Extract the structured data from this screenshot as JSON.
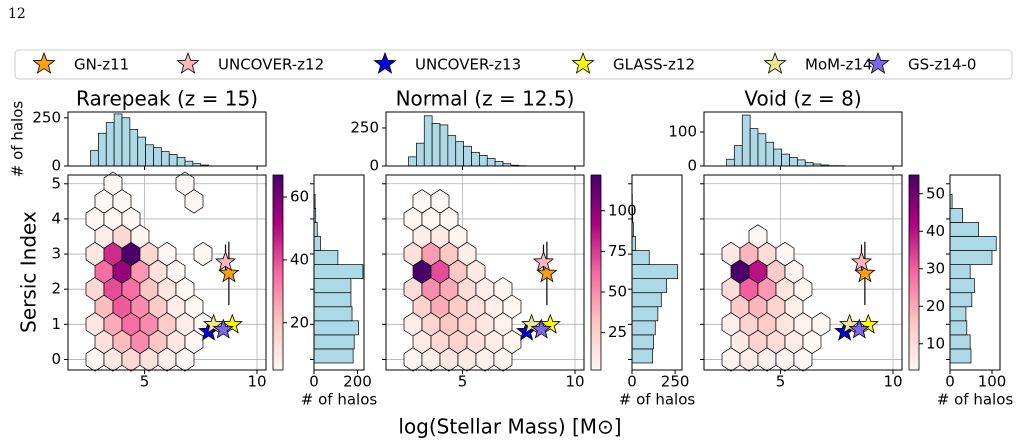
{
  "page_number": "12",
  "legend": {
    "series": [
      {
        "name": "GN-z11",
        "color": "#ff9f0f",
        "x": 8.75,
        "y": 2.45,
        "yerr": 0.9
      },
      {
        "name": "UNCOVER-z12",
        "color": "#ffb6c1",
        "x": 8.6,
        "y": 2.77,
        "yerr": 0.5
      },
      {
        "name": "UNCOVER-z13",
        "color": "#0000e0",
        "x": 7.85,
        "y": 0.79
      },
      {
        "name": "GLASS-z12",
        "color": "#ffff00",
        "x": 8.9,
        "y": 0.99
      },
      {
        "name": "MoM-z14",
        "color": "#f0e68c",
        "x": 8.07,
        "y": 0.99
      },
      {
        "name": "GS-z14-0",
        "color": "#7b68ee",
        "x": 8.5,
        "y": 0.85
      }
    ]
  },
  "ylabel": "Sersic Index",
  "xlabel": "log(Stellar Mass) [M⊙]",
  "hist_label": "# of halos",
  "cmap": [
    "#fff7f3",
    "#fcc5c0",
    "#f768a1",
    "#ae017e",
    "#49006a"
  ],
  "hist_color": "#add8e6",
  "chart_data": [
    {
      "type": "hexbin",
      "title": "Rarepeak (z = 15)",
      "xlim": [
        1.6,
        10.4
      ],
      "xticks": [
        5,
        10
      ],
      "ylim": [
        -0.3,
        5.25
      ],
      "yticks": [
        0,
        1,
        2,
        3,
        4,
        5
      ],
      "grid": true,
      "show_ytick_labels": true,
      "hexes": [
        [
          2.8,
          0,
          5
        ],
        [
          3.6,
          0,
          10
        ],
        [
          4.4,
          0,
          15
        ],
        [
          5.2,
          0,
          12
        ],
        [
          6.0,
          0,
          8
        ],
        [
          6.8,
          0,
          4
        ],
        [
          3.2,
          0.5,
          12
        ],
        [
          4.0,
          0.5,
          22
        ],
        [
          4.8,
          0.5,
          30
        ],
        [
          5.6,
          0.5,
          20
        ],
        [
          6.4,
          0.5,
          10
        ],
        [
          7.2,
          0.5,
          4
        ],
        [
          2.8,
          1,
          10
        ],
        [
          3.6,
          1,
          25
        ],
        [
          4.4,
          1,
          35
        ],
        [
          5.2,
          1,
          30
        ],
        [
          6.0,
          1,
          18
        ],
        [
          6.8,
          1,
          8
        ],
        [
          7.6,
          1,
          3
        ],
        [
          3.2,
          1.5,
          22
        ],
        [
          4.0,
          1.5,
          38
        ],
        [
          4.8,
          1.5,
          30
        ],
        [
          5.6,
          1.5,
          18
        ],
        [
          6.4,
          1.5,
          8
        ],
        [
          7.2,
          1.5,
          3
        ],
        [
          2.8,
          2,
          15
        ],
        [
          3.6,
          2,
          40
        ],
        [
          4.4,
          2,
          35
        ],
        [
          5.2,
          2,
          20
        ],
        [
          6.0,
          2,
          10
        ],
        [
          6.8,
          2,
          4
        ],
        [
          3.2,
          2.5,
          35
        ],
        [
          4.0,
          2.5,
          55
        ],
        [
          4.8,
          2.5,
          28
        ],
        [
          5.6,
          2.5,
          12
        ],
        [
          6.4,
          2.5,
          5
        ],
        [
          2.8,
          3,
          10
        ],
        [
          3.6,
          3,
          45
        ],
        [
          4.4,
          3,
          67
        ],
        [
          5.2,
          3,
          15
        ],
        [
          6.0,
          3,
          4
        ],
        [
          3.2,
          3.5,
          8
        ],
        [
          4.0,
          3.5,
          15
        ],
        [
          4.8,
          3.5,
          6
        ],
        [
          7.6,
          3,
          1
        ],
        [
          2.8,
          4,
          3
        ],
        [
          3.6,
          4,
          4
        ],
        [
          4.4,
          4,
          3
        ],
        [
          3.2,
          4.5,
          2
        ],
        [
          4.0,
          4.5,
          2
        ],
        [
          7.2,
          4.5,
          1
        ],
        [
          3.6,
          5,
          1
        ],
        [
          6.8,
          5,
          1
        ]
      ],
      "clim": [
        5,
        67
      ],
      "cticks": [
        20,
        40,
        60
      ],
      "top_hist": {
        "bins": [
          2.6,
          2.95,
          3.3,
          3.65,
          4.0,
          4.35,
          4.7,
          5.05,
          5.4,
          5.75,
          6.1,
          6.45,
          6.8,
          7.15,
          7.5,
          7.85
        ],
        "counts": [
          80,
          170,
          225,
          270,
          250,
          190,
          150,
          110,
          95,
          75,
          60,
          45,
          25,
          12,
          5
        ],
        "ylim": [
          0,
          280
        ],
        "yticks": [
          0,
          250
        ]
      },
      "right_hist": {
        "bins": [
          -0.1,
          0.3,
          0.7,
          1.1,
          1.5,
          1.9,
          2.3,
          2.7,
          3.1,
          3.5,
          3.9,
          4.3,
          4.7
        ],
        "counts": [
          180,
          185,
          205,
          175,
          170,
          170,
          225,
          110,
          30,
          15,
          8,
          5
        ],
        "xlim": [
          0,
          230
        ],
        "xticks": [
          0,
          200
        ]
      }
    },
    {
      "type": "hexbin",
      "title": "Normal (z = 12.5)",
      "xlim": [
        1.6,
        10.4
      ],
      "xticks": [
        5,
        10
      ],
      "ylim": [
        -0.3,
        5.25
      ],
      "yticks": [
        0,
        1,
        2,
        3,
        4,
        5
      ],
      "grid": true,
      "show_ytick_labels": false,
      "hexes": [
        [
          2.8,
          0,
          4
        ],
        [
          3.6,
          0,
          8
        ],
        [
          4.4,
          0,
          12
        ],
        [
          5.2,
          0,
          10
        ],
        [
          6.0,
          0,
          6
        ],
        [
          6.8,
          0,
          3
        ],
        [
          3.2,
          0.5,
          10
        ],
        [
          4.0,
          0.5,
          20
        ],
        [
          4.8,
          0.5,
          25
        ],
        [
          5.6,
          0.5,
          15
        ],
        [
          6.4,
          0.5,
          8
        ],
        [
          7.2,
          0.5,
          3
        ],
        [
          2.8,
          1,
          8
        ],
        [
          3.6,
          1,
          22
        ],
        [
          4.4,
          1,
          30
        ],
        [
          5.2,
          1,
          22
        ],
        [
          6.0,
          1,
          12
        ],
        [
          6.8,
          1,
          5
        ],
        [
          3.2,
          1.5,
          25
        ],
        [
          4.0,
          1.5,
          40
        ],
        [
          4.8,
          1.5,
          28
        ],
        [
          5.6,
          1.5,
          14
        ],
        [
          6.4,
          1.5,
          6
        ],
        [
          2.8,
          2,
          18
        ],
        [
          3.6,
          2,
          50
        ],
        [
          4.4,
          2,
          40
        ],
        [
          5.2,
          2,
          18
        ],
        [
          6.0,
          2,
          8
        ],
        [
          3.2,
          2.5,
          122
        ],
        [
          4.0,
          2.5,
          70
        ],
        [
          4.8,
          2.5,
          30
        ],
        [
          5.6,
          2.5,
          10
        ],
        [
          2.8,
          3,
          15
        ],
        [
          3.6,
          3,
          45
        ],
        [
          4.4,
          3,
          30
        ],
        [
          5.2,
          3,
          8
        ],
        [
          3.2,
          3.5,
          8
        ],
        [
          4.0,
          3.5,
          10
        ],
        [
          4.8,
          3.5,
          4
        ],
        [
          2.8,
          4,
          3
        ],
        [
          3.6,
          4,
          3
        ],
        [
          4.4,
          4,
          2
        ],
        [
          3.2,
          4.5,
          1
        ],
        [
          4.0,
          4.5,
          1
        ],
        [
          6.8,
          2,
          2
        ],
        [
          7.2,
          1.5,
          2
        ]
      ],
      "clim": [
        2,
        122
      ],
      "cticks": [
        25,
        50,
        75,
        100
      ],
      "top_hist": {
        "bins": [
          2.6,
          2.95,
          3.3,
          3.65,
          4.0,
          4.35,
          4.7,
          5.05,
          5.4,
          5.75,
          6.1,
          6.45,
          6.8,
          7.15,
          7.5,
          7.85
        ],
        "counts": [
          60,
          150,
          330,
          280,
          270,
          200,
          160,
          130,
          90,
          70,
          50,
          30,
          15,
          5,
          2
        ],
        "ylim": [
          0,
          355
        ],
        "yticks": [
          0,
          250
        ]
      },
      "right_hist": {
        "bins": [
          -0.1,
          0.3,
          0.7,
          1.1,
          1.5,
          1.9,
          2.3,
          2.7,
          3.1,
          3.5,
          3.9,
          4.3,
          4.7
        ],
        "counts": [
          120,
          125,
          135,
          150,
          170,
          200,
          265,
          100,
          20,
          8,
          4,
          2
        ],
        "xlim": [
          0,
          290
        ],
        "xticks": [
          0,
          250
        ]
      }
    },
    {
      "type": "hexbin",
      "title": "Void (z = 8)",
      "xlim": [
        1.6,
        10.4
      ],
      "xticks": [
        5,
        10
      ],
      "ylim": [
        -0.3,
        5.25
      ],
      "yticks": [
        0,
        1,
        2,
        3,
        4,
        5
      ],
      "grid": true,
      "show_ytick_labels": false,
      "hexes": [
        [
          2.8,
          0,
          4
        ],
        [
          3.6,
          0,
          6
        ],
        [
          4.4,
          0,
          5
        ],
        [
          5.2,
          0,
          4
        ],
        [
          6.0,
          0,
          3
        ],
        [
          3.2,
          0.5,
          6
        ],
        [
          4.0,
          0.5,
          12
        ],
        [
          4.8,
          0.5,
          10
        ],
        [
          5.6,
          0.5,
          6
        ],
        [
          6.4,
          0.5,
          3
        ],
        [
          2.8,
          1,
          5
        ],
        [
          3.6,
          1,
          12
        ],
        [
          4.4,
          1,
          14
        ],
        [
          5.2,
          1,
          8
        ],
        [
          6.0,
          1,
          4
        ],
        [
          3.2,
          1.5,
          14
        ],
        [
          4.0,
          1.5,
          18
        ],
        [
          4.8,
          1.5,
          12
        ],
        [
          5.6,
          1.5,
          5
        ],
        [
          2.8,
          2,
          10
        ],
        [
          3.6,
          2,
          30
        ],
        [
          4.4,
          2,
          22
        ],
        [
          5.2,
          2,
          8
        ],
        [
          6.0,
          2,
          3
        ],
        [
          3.2,
          2.5,
          55
        ],
        [
          4.0,
          2.5,
          40
        ],
        [
          4.8,
          2.5,
          14
        ],
        [
          5.6,
          2.5,
          4
        ],
        [
          2.8,
          3,
          6
        ],
        [
          3.6,
          3,
          18
        ],
        [
          4.4,
          3,
          10
        ],
        [
          5.2,
          3,
          3
        ],
        [
          4.0,
          3.5,
          3
        ],
        [
          6.8,
          1,
          2
        ]
      ],
      "clim": [
        3,
        55
      ],
      "cticks": [
        10,
        20,
        30,
        40,
        50
      ],
      "top_hist": {
        "bins": [
          2.6,
          2.95,
          3.3,
          3.65,
          4.0,
          4.35,
          4.7,
          5.05,
          5.4,
          5.75,
          6.1,
          6.45,
          6.8,
          7.15,
          7.5,
          7.85
        ],
        "counts": [
          20,
          60,
          150,
          110,
          95,
          70,
          50,
          35,
          25,
          18,
          10,
          6,
          3,
          1,
          1
        ],
        "ylim": [
          0,
          159
        ],
        "yticks": [
          0,
          100
        ]
      },
      "right_hist": {
        "bins": [
          -0.1,
          0.3,
          0.7,
          1.1,
          1.5,
          1.9,
          2.3,
          2.7,
          3.1,
          3.5,
          3.9,
          4.3,
          4.7
        ],
        "counts": [
          50,
          48,
          40,
          38,
          52,
          58,
          48,
          100,
          110,
          68,
          30,
          5
        ],
        "xlim": [
          0,
          119
        ],
        "xticks": [
          0,
          100
        ]
      }
    }
  ]
}
